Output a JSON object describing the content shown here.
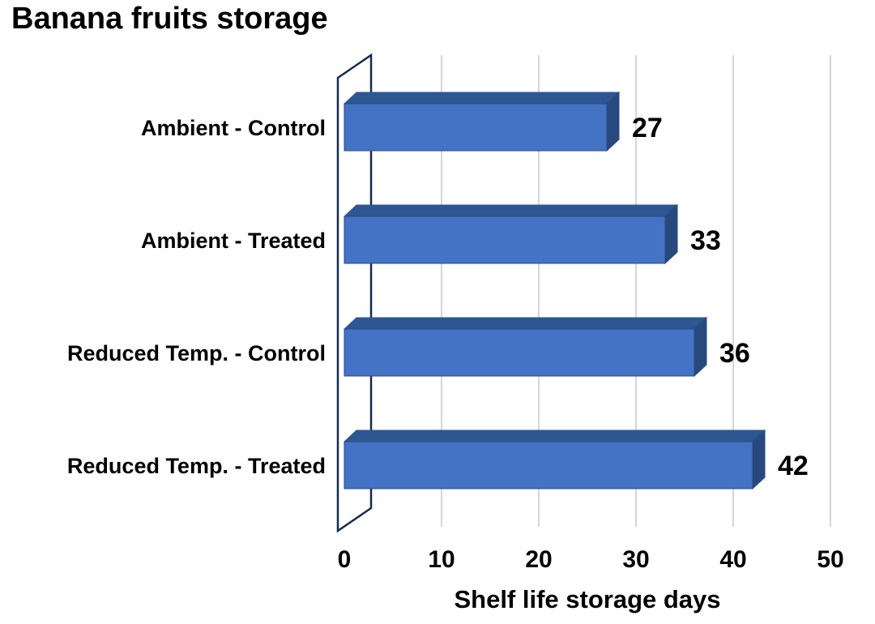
{
  "chart_data": {
    "type": "bar",
    "orientation": "horizontal",
    "style": "3d",
    "title": "Banana fruits storage",
    "categories": [
      "Ambient - Control",
      "Ambient - Treated",
      "Reduced Temp. - Control",
      "Reduced Temp. - Treated"
    ],
    "values": [
      27,
      33,
      36,
      42
    ],
    "xlabel": "Shelf life storage days",
    "xlim": [
      0,
      50
    ],
    "xticks": [
      0,
      10,
      20,
      30,
      40,
      50
    ],
    "legend": "none",
    "grid": "vertical",
    "colors": {
      "bar_front": "#4472C4",
      "bar_top": "#2E5693",
      "bar_side": "#28497E",
      "bar_stroke": "#2A4A85",
      "gridline": "#D6D6D6",
      "wall_stroke": "#172B4D",
      "wall_fill": "#FFFFFF",
      "text": "#000000",
      "background": "#FFFFFF"
    }
  }
}
